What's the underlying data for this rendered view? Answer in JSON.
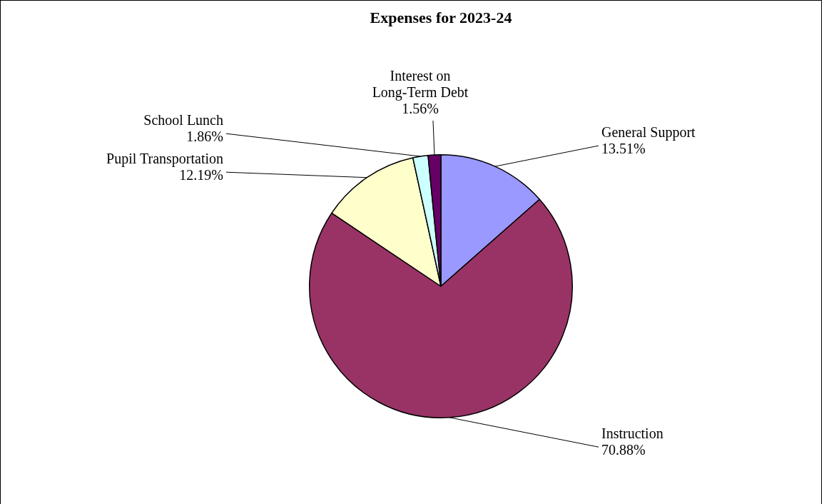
{
  "chart_data": {
    "type": "pie",
    "title": "Expenses for 2023-24",
    "categories": [
      "General Support",
      "Instruction",
      "Pupil Transportation",
      "School Lunch",
      "Interest on Long-Term Debt"
    ],
    "values": [
      13.51,
      70.88,
      12.19,
      1.86,
      1.56
    ],
    "colors": [
      "#9999ff",
      "#993366",
      "#ffffcc",
      "#ccffff",
      "#660066"
    ],
    "value_labels": [
      "13.51%",
      "70.88%",
      "12.19%",
      "1.86%",
      "1.56%"
    ],
    "legend": false
  }
}
